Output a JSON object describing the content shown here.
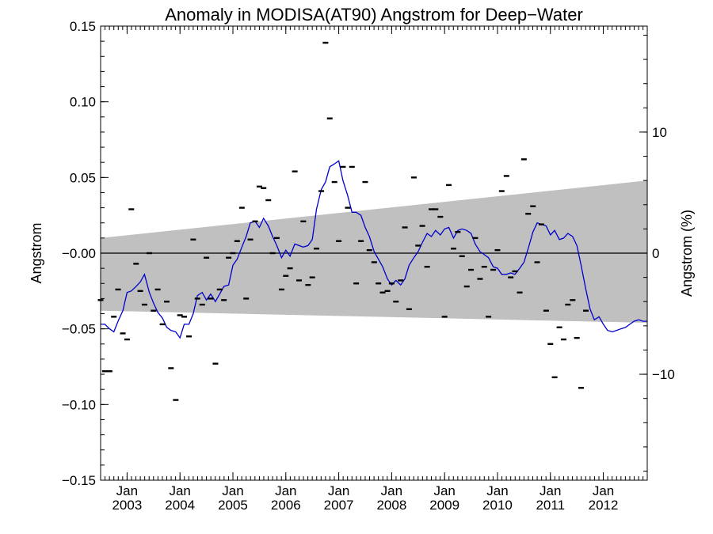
{
  "chart_data": {
    "type": "scatter",
    "title": "Anomaly in MODISA(AT90) Angstrom for Deep−Water",
    "ylabel": "Angstrom",
    "ylabel_right": "Angstrom (%)",
    "xlabel": "",
    "ylim": [
      -0.15,
      0.15
    ],
    "xlim": [
      2002.5,
      2012.83
    ],
    "right_axis_range": [
      -18.75,
      18.75
    ],
    "grid": false,
    "x_ticks": [
      {
        "month": "Jan",
        "year": "2003",
        "x": 2003.0
      },
      {
        "month": "Jan",
        "year": "2004",
        "x": 2004.0
      },
      {
        "month": "Jan",
        "year": "2005",
        "x": 2005.0
      },
      {
        "month": "Jan",
        "year": "2006",
        "x": 2006.0
      },
      {
        "month": "Jan",
        "year": "2007",
        "x": 2007.0
      },
      {
        "month": "Jan",
        "year": "2008",
        "x": 2008.0
      },
      {
        "month": "Jan",
        "year": "2009",
        "x": 2009.0
      },
      {
        "month": "Jan",
        "year": "2010",
        "x": 2010.0
      },
      {
        "month": "Jan",
        "year": "2011",
        "x": 2011.0
      },
      {
        "month": "Jan",
        "year": "2012",
        "x": 2012.0
      }
    ],
    "y_ticks_left": [
      {
        "v": 0.15,
        "label": "0.15"
      },
      {
        "v": 0.1,
        "label": "0.10"
      },
      {
        "v": 0.05,
        "label": "0.05"
      },
      {
        "v": 0.0,
        "label": "−0.00"
      },
      {
        "v": -0.05,
        "label": "−0.05"
      },
      {
        "v": -0.1,
        "label": "−0.10"
      },
      {
        "v": -0.15,
        "label": "−0.15"
      }
    ],
    "y_ticks_right": [
      {
        "v": 10,
        "label": "10"
      },
      {
        "v": 0,
        "label": "0"
      },
      {
        "v": -10,
        "label": "−10"
      }
    ],
    "band": {
      "color": "#c0c0c0",
      "upper": [
        [
          2002.5,
          0.01
        ],
        [
          2012.83,
          0.048
        ]
      ],
      "lower": [
        [
          2002.5,
          -0.038
        ],
        [
          2012.83,
          -0.046
        ]
      ]
    },
    "zero_line": 0.0,
    "series": [
      {
        "style": "line",
        "color": "#0000cc",
        "points": [
          [
            2002.5,
            -0.047
          ],
          [
            2002.58,
            -0.047
          ],
          [
            2002.67,
            -0.05
          ],
          [
            2002.75,
            -0.052
          ],
          [
            2002.83,
            -0.045
          ],
          [
            2002.92,
            -0.038
          ],
          [
            2003.0,
            -0.026
          ],
          [
            2003.08,
            -0.025
          ],
          [
            2003.17,
            -0.022
          ],
          [
            2003.25,
            -0.019
          ],
          [
            2003.33,
            -0.014
          ],
          [
            2003.42,
            -0.026
          ],
          [
            2003.5,
            -0.033
          ],
          [
            2003.58,
            -0.039
          ],
          [
            2003.67,
            -0.043
          ],
          [
            2003.75,
            -0.049
          ],
          [
            2003.83,
            -0.051
          ],
          [
            2003.92,
            -0.052
          ],
          [
            2004.0,
            -0.056
          ],
          [
            2004.08,
            -0.047
          ],
          [
            2004.17,
            -0.047
          ],
          [
            2004.25,
            -0.04
          ],
          [
            2004.33,
            -0.028
          ],
          [
            2004.42,
            -0.026
          ],
          [
            2004.5,
            -0.031
          ],
          [
            2004.58,
            -0.027
          ],
          [
            2004.67,
            -0.032
          ],
          [
            2004.75,
            -0.027
          ],
          [
            2004.83,
            -0.022
          ],
          [
            2004.92,
            -0.021
          ],
          [
            2005.0,
            -0.008
          ],
          [
            2005.08,
            -0.004
          ],
          [
            2005.17,
            0.004
          ],
          [
            2005.25,
            0.011
          ],
          [
            2005.33,
            0.02
          ],
          [
            2005.42,
            0.021
          ],
          [
            2005.5,
            0.017
          ],
          [
            2005.58,
            0.023
          ],
          [
            2005.67,
            0.018
          ],
          [
            2005.75,
            0.011
          ],
          [
            2005.83,
            0.005
          ],
          [
            2005.92,
            -0.003
          ],
          [
            2006.0,
            0.002
          ],
          [
            2006.08,
            -0.002
          ],
          [
            2006.17,
            0.006
          ],
          [
            2006.25,
            0.005
          ],
          [
            2006.33,
            0.004
          ],
          [
            2006.42,
            0.005
          ],
          [
            2006.5,
            0.009
          ],
          [
            2006.58,
            0.029
          ],
          [
            2006.67,
            0.042
          ],
          [
            2006.75,
            0.047
          ],
          [
            2006.83,
            0.057
          ],
          [
            2006.92,
            0.059
          ],
          [
            2007.0,
            0.061
          ],
          [
            2007.08,
            0.048
          ],
          [
            2007.17,
            0.038
          ],
          [
            2007.25,
            0.027
          ],
          [
            2007.33,
            0.027
          ],
          [
            2007.42,
            0.025
          ],
          [
            2007.5,
            0.017
          ],
          [
            2007.58,
            0.011
          ],
          [
            2007.67,
            0.001
          ],
          [
            2007.75,
            -0.004
          ],
          [
            2007.83,
            -0.009
          ],
          [
            2007.92,
            -0.017
          ],
          [
            2008.0,
            -0.021
          ],
          [
            2008.08,
            -0.018
          ],
          [
            2008.17,
            -0.021
          ],
          [
            2008.25,
            -0.017
          ],
          [
            2008.33,
            -0.008
          ],
          [
            2008.42,
            -0.003
          ],
          [
            2008.5,
            0.001
          ],
          [
            2008.58,
            0.007
          ],
          [
            2008.67,
            0.013
          ],
          [
            2008.75,
            0.011
          ],
          [
            2008.83,
            0.015
          ],
          [
            2008.92,
            0.012
          ],
          [
            2009.0,
            0.016
          ],
          [
            2009.08,
            0.017
          ],
          [
            2009.17,
            0.01
          ],
          [
            2009.25,
            0.015
          ],
          [
            2009.33,
            0.016
          ],
          [
            2009.42,
            0.015
          ],
          [
            2009.5,
            0.013
          ],
          [
            2009.58,
            0.006
          ],
          [
            2009.67,
            0.001
          ],
          [
            2009.75,
            -0.001
          ],
          [
            2009.83,
            -0.003
          ],
          [
            2009.92,
            -0.009
          ],
          [
            2010.0,
            -0.01
          ],
          [
            2010.08,
            -0.014
          ],
          [
            2010.17,
            -0.014
          ],
          [
            2010.25,
            -0.013
          ],
          [
            2010.33,
            -0.014
          ],
          [
            2010.42,
            -0.01
          ],
          [
            2010.5,
            -0.006
          ],
          [
            2010.58,
            0.003
          ],
          [
            2010.67,
            0.014
          ],
          [
            2010.75,
            0.02
          ],
          [
            2010.83,
            0.019
          ],
          [
            2010.92,
            0.018
          ],
          [
            2011.0,
            0.012
          ],
          [
            2011.08,
            0.015
          ],
          [
            2011.17,
            0.009
          ],
          [
            2011.25,
            0.01
          ],
          [
            2011.33,
            0.013
          ],
          [
            2011.42,
            0.011
          ],
          [
            2011.5,
            0.005
          ],
          [
            2011.58,
            -0.008
          ],
          [
            2011.67,
            -0.024
          ],
          [
            2011.75,
            -0.037
          ],
          [
            2011.83,
            -0.044
          ],
          [
            2011.92,
            -0.042
          ],
          [
            2012.0,
            -0.047
          ],
          [
            2012.08,
            -0.051
          ],
          [
            2012.17,
            -0.052
          ],
          [
            2012.25,
            -0.051
          ],
          [
            2012.33,
            -0.05
          ],
          [
            2012.42,
            -0.049
          ],
          [
            2012.5,
            -0.047
          ],
          [
            2012.58,
            -0.045
          ],
          [
            2012.67,
            -0.044
          ],
          [
            2012.75,
            -0.045
          ],
          [
            2012.83,
            -0.045
          ]
        ]
      },
      {
        "style": "dash",
        "color": "#000000",
        "points": [
          [
            2002.5,
            -0.031
          ],
          [
            2002.58,
            -0.078
          ],
          [
            2002.67,
            -0.078
          ],
          [
            2002.75,
            -0.042
          ],
          [
            2002.83,
            -0.024
          ],
          [
            2002.92,
            -0.053
          ],
          [
            2003.0,
            -0.057
          ],
          [
            2003.08,
            0.029
          ],
          [
            2003.17,
            -0.007
          ],
          [
            2003.25,
            -0.025
          ],
          [
            2003.33,
            -0.034
          ],
          [
            2003.42,
            0.0
          ],
          [
            2003.5,
            -0.038
          ],
          [
            2003.58,
            -0.024
          ],
          [
            2003.67,
            -0.047
          ],
          [
            2003.75,
            -0.032
          ],
          [
            2003.83,
            -0.076
          ],
          [
            2003.92,
            -0.097
          ],
          [
            2004.0,
            -0.041
          ],
          [
            2004.08,
            -0.042
          ],
          [
            2004.17,
            -0.055
          ],
          [
            2004.25,
            0.009
          ],
          [
            2004.33,
            -0.03
          ],
          [
            2004.42,
            -0.034
          ],
          [
            2004.5,
            -0.003
          ],
          [
            2004.58,
            -0.03
          ],
          [
            2004.67,
            -0.073
          ],
          [
            2004.75,
            -0.024
          ],
          [
            2004.83,
            -0.031
          ],
          [
            2004.92,
            -0.003
          ],
          [
            2005.0,
            0.0
          ],
          [
            2005.08,
            0.008
          ],
          [
            2005.17,
            0.03
          ],
          [
            2005.25,
            -0.03
          ],
          [
            2005.33,
            0.009
          ],
          [
            2005.42,
            0.021
          ],
          [
            2005.5,
            0.044
          ],
          [
            2005.58,
            0.043
          ],
          [
            2005.67,
            0.035
          ],
          [
            2005.75,
            0.0
          ],
          [
            2005.83,
            0.01
          ],
          [
            2005.92,
            -0.024
          ],
          [
            2006.0,
            -0.015
          ],
          [
            2006.08,
            -0.01
          ],
          [
            2006.17,
            0.054
          ],
          [
            2006.25,
            -0.018
          ],
          [
            2006.33,
            0.021
          ],
          [
            2006.42,
            -0.021
          ],
          [
            2006.5,
            -0.016
          ],
          [
            2006.58,
            0.003
          ],
          [
            2006.67,
            0.041
          ],
          [
            2006.75,
            0.139
          ],
          [
            2006.83,
            0.089
          ],
          [
            2006.92,
            0.047
          ],
          [
            2007.0,
            0.008
          ],
          [
            2007.08,
            0.057
          ],
          [
            2007.17,
            0.03
          ],
          [
            2007.25,
            0.057
          ],
          [
            2007.33,
            -0.02
          ],
          [
            2007.42,
            0.008
          ],
          [
            2007.5,
            0.047
          ],
          [
            2007.58,
            0.002
          ],
          [
            2007.67,
            -0.006
          ],
          [
            2007.75,
            -0.02
          ],
          [
            2007.83,
            -0.026
          ],
          [
            2007.92,
            -0.025
          ],
          [
            2008.0,
            -0.02
          ],
          [
            2008.08,
            -0.032
          ],
          [
            2008.17,
            -0.018
          ],
          [
            2008.25,
            0.017
          ],
          [
            2008.33,
            -0.037
          ],
          [
            2008.42,
            0.05
          ],
          [
            2008.5,
            0.005
          ],
          [
            2008.58,
            0.018
          ],
          [
            2008.67,
            -0.009
          ],
          [
            2008.75,
            0.029
          ],
          [
            2008.83,
            0.029
          ],
          [
            2008.92,
            0.024
          ],
          [
            2009.0,
            -0.042
          ],
          [
            2009.08,
            0.045
          ],
          [
            2009.17,
            0.003
          ],
          [
            2009.25,
            0.014
          ],
          [
            2009.33,
            -0.002
          ],
          [
            2009.42,
            -0.022
          ],
          [
            2009.5,
            -0.011
          ],
          [
            2009.58,
            0.01
          ],
          [
            2009.67,
            -0.017
          ],
          [
            2009.75,
            -0.009
          ],
          [
            2009.83,
            -0.042
          ],
          [
            2009.92,
            -0.011
          ],
          [
            2010.0,
            0.002
          ],
          [
            2010.08,
            0.041
          ],
          [
            2010.17,
            0.051
          ],
          [
            2010.25,
            -0.016
          ],
          [
            2010.33,
            -0.012
          ],
          [
            2010.42,
            -0.026
          ],
          [
            2010.5,
            0.062
          ],
          [
            2010.58,
            0.026
          ],
          [
            2010.67,
            0.031
          ],
          [
            2010.75,
            -0.006
          ],
          [
            2010.83,
            0.019
          ],
          [
            2010.92,
            -0.038
          ],
          [
            2011.0,
            -0.06
          ],
          [
            2011.08,
            -0.082
          ],
          [
            2011.17,
            -0.049
          ],
          [
            2011.25,
            -0.057
          ],
          [
            2011.33,
            -0.034
          ],
          [
            2011.42,
            -0.031
          ],
          [
            2011.5,
            -0.056
          ],
          [
            2011.58,
            -0.089
          ],
          [
            2011.67,
            -0.038
          ]
        ]
      }
    ]
  }
}
